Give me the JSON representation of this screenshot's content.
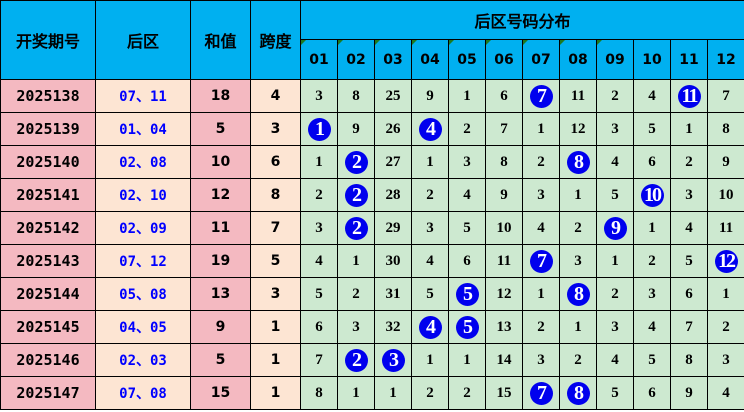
{
  "header": {
    "period": "开奖期号",
    "back": "后区",
    "sum": "和值",
    "span": "跨度",
    "distribution": "后区号码分布",
    "numbers": [
      "01",
      "02",
      "03",
      "04",
      "05",
      "06",
      "07",
      "08",
      "09",
      "10",
      "11",
      "12"
    ]
  },
  "colors": {
    "header": "#00b0f0",
    "pink": "#f4b9c1",
    "peach": "#fde5d3",
    "green": "#cde9d0",
    "ball": "#0000ee",
    "back_text": "#0000ff"
  },
  "rows": [
    {
      "period": "2025138",
      "back": "07、11",
      "sum": "18",
      "span": "4",
      "dist": [
        "3",
        "8",
        "25",
        "9",
        "1",
        "6",
        "7",
        "11",
        "2",
        "4",
        "11",
        "7"
      ],
      "hits": [
        7,
        11
      ]
    },
    {
      "period": "2025139",
      "back": "01、04",
      "sum": "5",
      "span": "3",
      "dist": [
        "1",
        "9",
        "26",
        "4",
        "2",
        "7",
        "1",
        "12",
        "3",
        "5",
        "1",
        "8"
      ],
      "hits": [
        1,
        4
      ]
    },
    {
      "period": "2025140",
      "back": "02、08",
      "sum": "10",
      "span": "6",
      "dist": [
        "1",
        "2",
        "27",
        "1",
        "3",
        "8",
        "2",
        "8",
        "4",
        "6",
        "2",
        "9"
      ],
      "hits": [
        2,
        8
      ]
    },
    {
      "period": "2025141",
      "back": "02、10",
      "sum": "12",
      "span": "8",
      "dist": [
        "2",
        "2",
        "28",
        "2",
        "4",
        "9",
        "3",
        "1",
        "5",
        "10",
        "3",
        "10"
      ],
      "hits": [
        2,
        10
      ]
    },
    {
      "period": "2025142",
      "back": "02、09",
      "sum": "11",
      "span": "7",
      "dist": [
        "3",
        "2",
        "29",
        "3",
        "5",
        "10",
        "4",
        "2",
        "9",
        "1",
        "4",
        "11"
      ],
      "hits": [
        2,
        9
      ]
    },
    {
      "period": "2025143",
      "back": "07、12",
      "sum": "19",
      "span": "5",
      "dist": [
        "4",
        "1",
        "30",
        "4",
        "6",
        "11",
        "7",
        "3",
        "1",
        "2",
        "5",
        "12"
      ],
      "hits": [
        7,
        12
      ]
    },
    {
      "period": "2025144",
      "back": "05、08",
      "sum": "13",
      "span": "3",
      "dist": [
        "5",
        "2",
        "31",
        "5",
        "5",
        "12",
        "1",
        "8",
        "2",
        "3",
        "6",
        "1"
      ],
      "hits": [
        5,
        8
      ]
    },
    {
      "period": "2025145",
      "back": "04、05",
      "sum": "9",
      "span": "1",
      "dist": [
        "6",
        "3",
        "32",
        "4",
        "5",
        "13",
        "2",
        "1",
        "3",
        "4",
        "7",
        "2"
      ],
      "hits": [
        4,
        5
      ]
    },
    {
      "period": "2025146",
      "back": "02、03",
      "sum": "5",
      "span": "1",
      "dist": [
        "7",
        "2",
        "3",
        "1",
        "1",
        "14",
        "3",
        "2",
        "4",
        "5",
        "8",
        "3"
      ],
      "hits": [
        2,
        3
      ]
    },
    {
      "period": "2025147",
      "back": "07、08",
      "sum": "15",
      "span": "1",
      "dist": [
        "8",
        "1",
        "1",
        "2",
        "2",
        "15",
        "7",
        "8",
        "5",
        "6",
        "9",
        "4"
      ],
      "hits": [
        7,
        8
      ]
    }
  ]
}
